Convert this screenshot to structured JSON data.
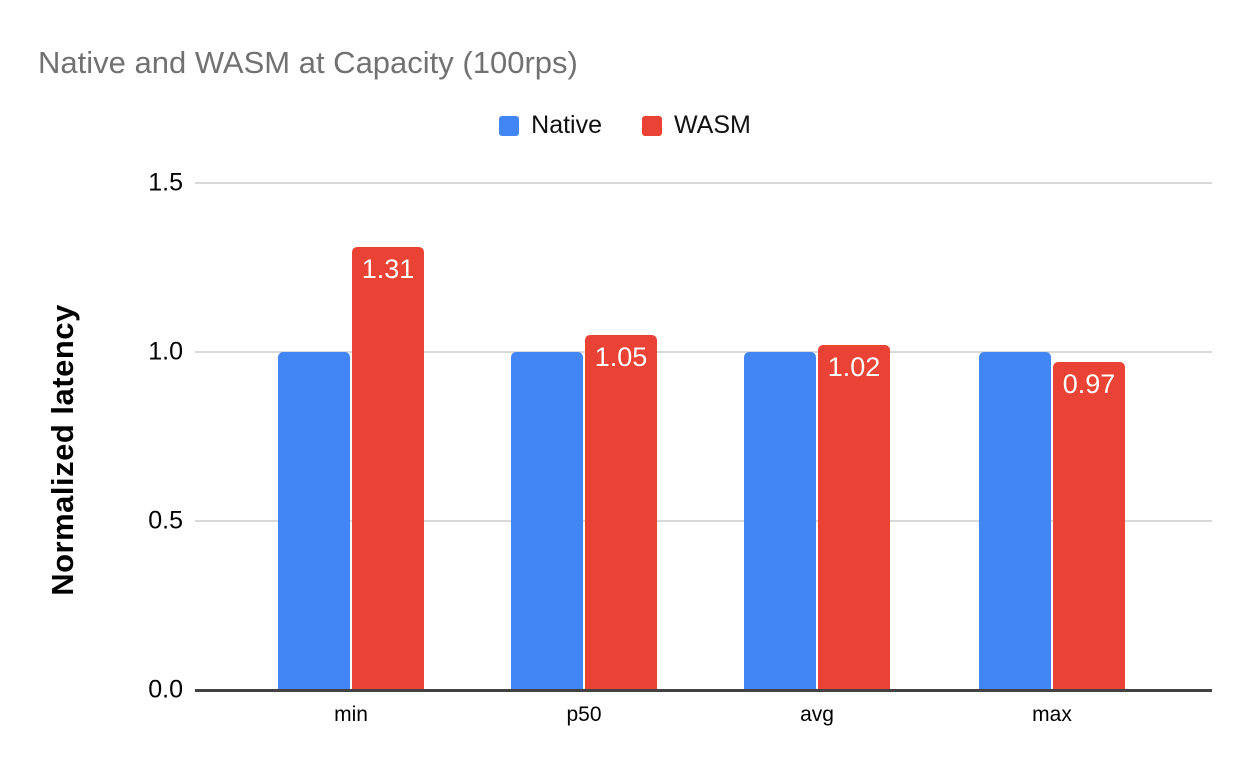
{
  "chart_data": {
    "type": "bar",
    "title": "Native and WASM at Capacity (100rps)",
    "ylabel": "Normalized latency",
    "xlabel": "",
    "categories": [
      "min",
      "p50",
      "avg",
      "max"
    ],
    "series": [
      {
        "name": "Native",
        "color": "#4285F4",
        "values": [
          1.0,
          1.0,
          1.0,
          1.0
        ],
        "show_data_labels": false,
        "data_labels": [
          "",
          "",
          "",
          ""
        ]
      },
      {
        "name": "WASM",
        "color": "#EA4335",
        "values": [
          1.31,
          1.05,
          1.02,
          0.97
        ],
        "show_data_labels": true,
        "data_labels": [
          "1.31",
          "1.05",
          "1.02",
          "0.97"
        ],
        "data_label_color": "#ffffff"
      }
    ],
    "ylim": [
      0,
      1.5
    ],
    "yticks": [
      0.0,
      0.5,
      1.0,
      1.5
    ],
    "ytick_labels": [
      "0.0",
      "0.5",
      "1.0",
      "1.5"
    ],
    "grid": true,
    "legend_position": "top-center",
    "colors": {
      "grid": "#d9d9d9",
      "axis": "#424242",
      "title_text": "#717171",
      "tick_text": "#000000",
      "background": "#ffffff"
    }
  }
}
